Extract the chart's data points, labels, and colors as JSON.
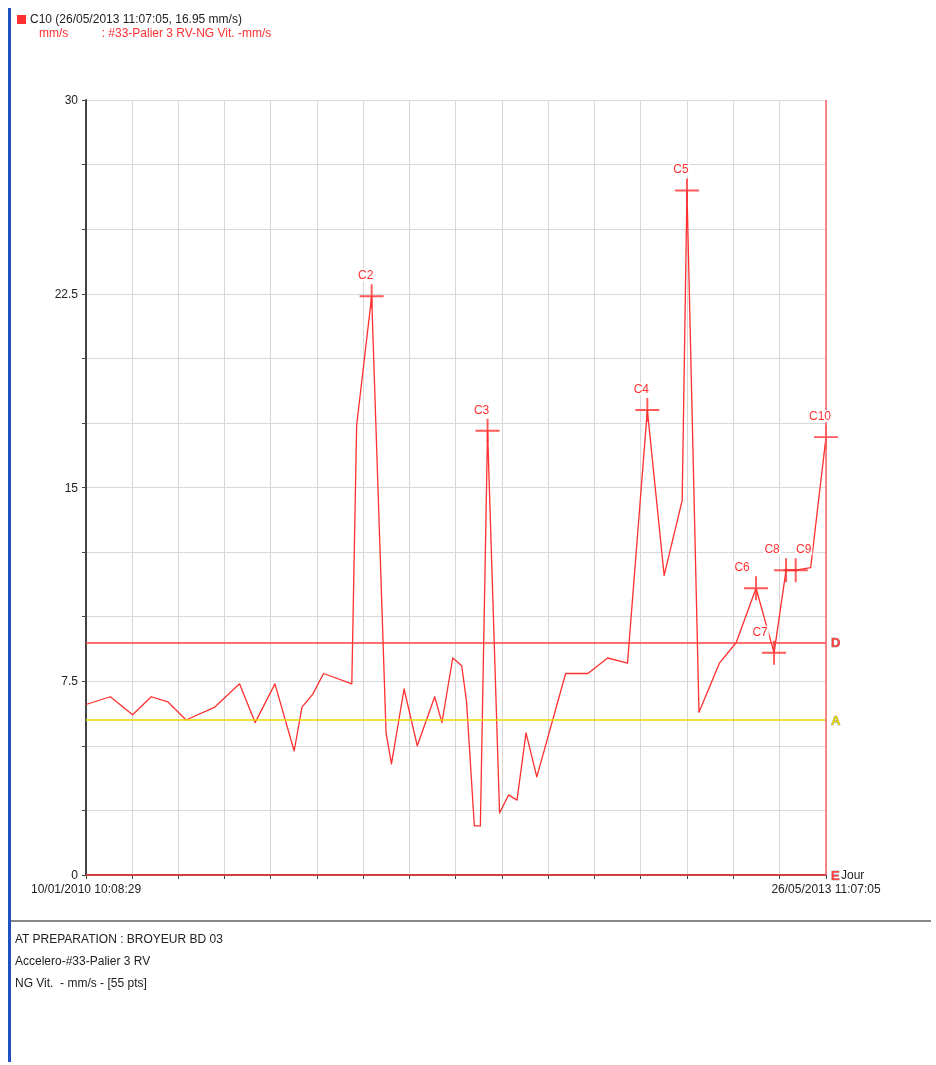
{
  "chart_data": {
    "type": "line",
    "title": "C10 (26/05/2013 11:07:05, 16.95 mm/s)",
    "subtitle": "mm/s          : #33-Palier 3 RV-NG Vit. -mm/s",
    "xlabel": "Jour",
    "x": [
      "2010-01-10T10:08",
      "2010-02-20",
      "2010-03-29",
      "2010-04-29",
      "2010-05-27",
      "2010-06-26",
      "2010-08-13",
      "2010-09-23",
      "2010-10-19",
      "2010-11-21",
      "2010-12-23",
      "2011-01-05",
      "2011-01-23",
      "2011-02-10",
      "2011-03-29",
      "2011-04-06",
      "2011-05-01",
      "2011-05-25",
      "2011-06-03",
      "2011-06-24",
      "2011-07-16",
      "2011-08-14",
      "2011-08-26",
      "2011-09-13",
      "2011-09-28",
      "2011-10-06",
      "2011-10-19",
      "2011-10-29",
      "2011-11-10",
      "2011-11-30",
      "2011-12-15",
      "2011-12-29",
      "2012-01-13",
      "2012-01-31",
      "2012-03-19",
      "2012-04-25",
      "2012-05-28",
      "2012-06-30",
      "2012-08-02",
      "2012-08-30",
      "2012-09-29",
      "2012-10-07",
      "2012-10-27",
      "2012-11-30",
      "2012-12-28",
      "2013-01-30",
      "2013-03-01",
      "2013-03-21",
      "2013-04-06",
      "2013-05-01",
      "2013-05-26T11:07"
    ],
    "series": [
      {
        "color": "#ff3030",
        "values": [
          6.6,
          6.9,
          6.2,
          6.9,
          6.7,
          6.0,
          6.5,
          7.4,
          5.9,
          7.4,
          4.8,
          6.5,
          7.0,
          7.8,
          7.4,
          17.4,
          22.4,
          5.5,
          4.3,
          7.2,
          5.0,
          6.9,
          5.9,
          8.4,
          8.1,
          6.7,
          1.9,
          1.9,
          17.2,
          2.4,
          3.1,
          2.9,
          5.5,
          3.8,
          7.8,
          7.8,
          8.4,
          8.2,
          18.0,
          11.6,
          14.5,
          26.5,
          6.3,
          8.2,
          9.0,
          11.1,
          8.6,
          11.8,
          11.8,
          11.9,
          16.95
        ]
      },
      {
        "type": "scatter",
        "marker": "cross",
        "color": "#ff3030",
        "x": [
          "2011-05-01",
          "2011-11-10",
          "2012-08-02",
          "2012-10-07",
          "2013-01-30",
          "2013-03-01",
          "2013-03-21",
          "2013-04-06",
          "2013-05-26T11:07"
        ],
        "values": [
          22.4,
          17.2,
          18.0,
          26.5,
          11.1,
          8.6,
          11.8,
          11.8,
          16.95
        ]
      }
    ],
    "xlim": [
      "2010-01-10T10:08",
      "2013-05-26T11:07"
    ],
    "xticks": [
      {
        "value": "2010-01-10T10:08",
        "label": "10/01/2010 10:08:29"
      },
      {
        "value": "2010-03-28",
        "label": null
      },
      {
        "value": "2010-06-13",
        "label": null
      },
      {
        "value": "2010-08-29",
        "label": null
      },
      {
        "value": "2010-11-14",
        "label": null
      },
      {
        "value": "2011-01-30",
        "label": null
      },
      {
        "value": "2011-04-17",
        "label": null
      },
      {
        "value": "2011-07-03",
        "label": null
      },
      {
        "value": "2011-09-18",
        "label": null
      },
      {
        "value": "2011-12-04",
        "label": null
      },
      {
        "value": "2012-02-19",
        "label": null
      },
      {
        "value": "2012-05-06",
        "label": null
      },
      {
        "value": "2012-07-22",
        "label": null
      },
      {
        "value": "2012-10-07",
        "label": null
      },
      {
        "value": "2012-12-23",
        "label": null
      },
      {
        "value": "2013-03-10",
        "label": null
      },
      {
        "value": "2013-05-26T11:07",
        "label": "26/05/2013 11:07:05"
      }
    ],
    "ylim": [
      0,
      30
    ],
    "yticks": [
      0,
      {
        "value": 2.5,
        "label": null
      },
      {
        "value": 5,
        "label": null
      },
      7.5,
      {
        "value": 10,
        "label": null
      },
      {
        "value": 12.5,
        "label": null
      },
      15,
      {
        "value": 17.5,
        "label": null
      },
      {
        "value": 20,
        "label": null
      },
      22.5,
      {
        "value": 25,
        "label": null
      },
      {
        "value": 27.5,
        "label": null
      },
      30
    ],
    "grid": true,
    "marker": "none",
    "line_style": "solid",
    "ref_lines": [
      {
        "axis": "y",
        "value": 9,
        "label": "D",
        "color": "#ff4040"
      },
      {
        "axis": "y",
        "value": 6,
        "label": "A",
        "color": "#e8d800"
      },
      {
        "axis": "y",
        "value": 0,
        "label": "E",
        "color": "#ff4040"
      },
      {
        "axis": "x",
        "value": "2013-05-26T11:07",
        "label": null,
        "color": "#ff6060"
      }
    ],
    "annotations": [
      {
        "text": "C2",
        "x": "2011-05-01",
        "y": 22.4
      },
      {
        "text": "C3",
        "x": "2011-11-10",
        "y": 17.2
      },
      {
        "text": "C4",
        "x": "2012-08-02",
        "y": 18.0
      },
      {
        "text": "C5",
        "x": "2012-10-07",
        "y": 26.5
      },
      {
        "text": "C6",
        "x": "2013-01-30",
        "y": 11.1
      },
      {
        "text": "C7",
        "x": "2013-03-01",
        "y": 8.6
      },
      {
        "text": "C8",
        "x": "2013-03-21",
        "y": 11.8
      },
      {
        "text": "C9",
        "x": "2013-04-06",
        "y": 11.8
      },
      {
        "text": "C10",
        "x": "2013-05-26T11:07",
        "y": 16.95
      },
      "AT PREPARATION : BROYEUR BD 03",
      "Accelero-#33-Palier 3 RV",
      "NG Vit.  - mm/s - [55 pts]"
    ]
  }
}
